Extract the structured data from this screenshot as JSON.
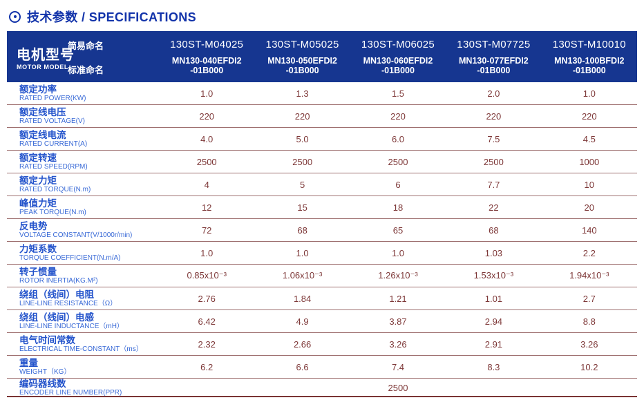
{
  "header": {
    "title": "技术参数 / SPECIFICATIONS",
    "title_icon": "circle-dot"
  },
  "colors": {
    "header_navy": "#163690",
    "title_blue": "#1233aa",
    "label_cn_blue": "#2353cb",
    "label_en_blue": "#3768d6",
    "value_maroon": "#7d3737",
    "separator_line": "#9e6f6f"
  },
  "table": {
    "header": {
      "row_label_cn": "电机型号",
      "row_label_en": "MOTOR MODEL",
      "simple_name_label": "简易命名",
      "standard_name_label": "标准命名",
      "models": [
        {
          "simple": "130ST-M04025",
          "standard_line1": "MN130-040EFDI2",
          "standard_line2": "-01B000"
        },
        {
          "simple": "130ST-M05025",
          "standard_line1": "MN130-050EFDI2",
          "standard_line2": "-01B000"
        },
        {
          "simple": "130ST-M06025",
          "standard_line1": "MN130-060EFDI2",
          "standard_line2": "-01B000"
        },
        {
          "simple": "130ST-M07725",
          "standard_line1": "MN130-077EFDI2",
          "standard_line2": "-01B000"
        },
        {
          "simple": "130ST-M10010",
          "standard_line1": "MN130-100BFDI2",
          "standard_line2": "-01B000"
        }
      ]
    },
    "rows": [
      {
        "label_cn": "额定功率",
        "label_en": "RATED POWER(KW)",
        "values": [
          "1.0",
          "1.3",
          "1.5",
          "2.0",
          "1.0"
        ]
      },
      {
        "label_cn": "额定线电压",
        "label_en": "RATED VOLTAGE(V)",
        "values": [
          "220",
          "220",
          "220",
          "220",
          "220"
        ]
      },
      {
        "label_cn": "额定线电流",
        "label_en": "RATED CURRENT(A)",
        "values": [
          "4.0",
          "5.0",
          "6.0",
          "7.5",
          "4.5"
        ]
      },
      {
        "label_cn": "额定转速",
        "label_en": "RATED SPEED(RPM)",
        "values": [
          "2500",
          "2500",
          "2500",
          "2500",
          "1000"
        ]
      },
      {
        "label_cn": "额定力矩",
        "label_en": "RATED TORQUE(N.m)",
        "values": [
          "4",
          "5",
          "6",
          "7.7",
          "10"
        ]
      },
      {
        "label_cn": "峰值力矩",
        "label_en": "PEAK TORQUE(N.m)",
        "values": [
          "12",
          "15",
          "18",
          "22",
          "20"
        ]
      },
      {
        "label_cn": "反电势",
        "label_en": "VOLTAGE CONSTANT(V/1000r/min)",
        "values": [
          "72",
          "68",
          "65",
          "68",
          "140"
        ]
      },
      {
        "label_cn": "力矩系数",
        "label_en": "TORQUE COEFFICIENT(N.m/A)",
        "values": [
          "1.0",
          "1.0",
          "1.0",
          "1.03",
          "2.2"
        ]
      },
      {
        "label_cn": "转子惯量",
        "label_en": "ROTOR INERTIA(KG.M²)",
        "values": [
          "0.85x10⁻³",
          "1.06x10⁻³",
          "1.26x10⁻³",
          "1.53x10⁻³",
          "1.94x10⁻³"
        ]
      },
      {
        "label_cn": "绕组（线间）电阻",
        "label_en": "LINE-LINE RESISTANCE（Ω）",
        "values": [
          "2.76",
          "1.84",
          "1.21",
          "1.01",
          "2.7"
        ]
      },
      {
        "label_cn": "绕组（线间）电感",
        "label_en": "LINE-LINE INDUCTANCE（mH）",
        "values": [
          "6.42",
          "4.9",
          "3.87",
          "2.94",
          "8.8"
        ]
      },
      {
        "label_cn": "电气时间常数",
        "label_en": "ELECTRICAL TIME-CONSTANT（ms）",
        "values": [
          "2.32",
          "2.66",
          "3.26",
          "2.91",
          "3.26"
        ]
      },
      {
        "label_cn": "重量",
        "label_en": "WEIGHT（KG）",
        "values": [
          "6.2",
          "6.6",
          "7.4",
          "8.3",
          "10.2"
        ]
      },
      {
        "label_cn": "编码器线数",
        "label_en": "ENCODER LINE NUMBER(PPR)",
        "merged_value": "2500"
      }
    ]
  }
}
